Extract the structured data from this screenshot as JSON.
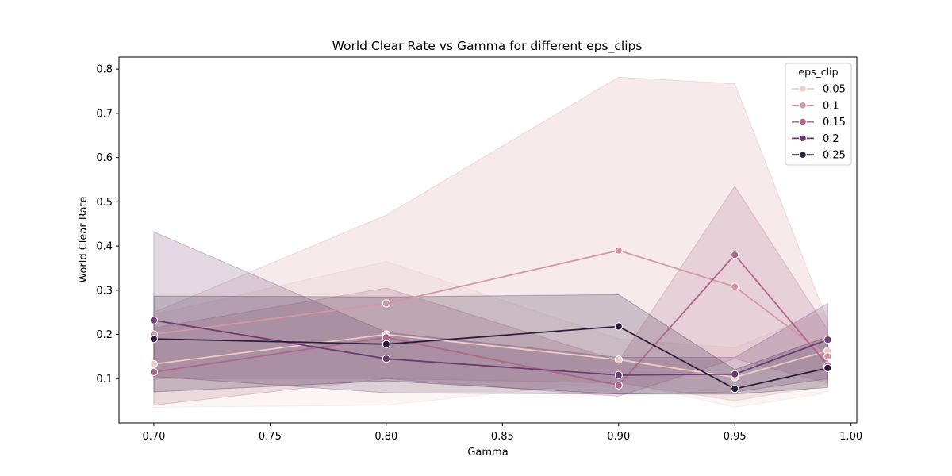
{
  "chart_data": {
    "type": "line",
    "title": "World Clear Rate vs Gamma for different eps_clips",
    "xlabel": "Gamma",
    "ylabel": "World Clear Rate",
    "xlim": [
      0.685,
      1.0025
    ],
    "ylim": [
      0.0,
      0.8272
    ],
    "xticks": [
      0.7,
      0.75,
      0.8,
      0.85,
      0.9,
      0.95,
      1.0
    ],
    "xtick_labels": [
      "0.70",
      "0.75",
      "0.80",
      "0.85",
      "0.90",
      "0.95",
      "1.00"
    ],
    "yticks": [
      0.1,
      0.2,
      0.3,
      0.4,
      0.5,
      0.6,
      0.7,
      0.8
    ],
    "ytick_labels": [
      "0.1",
      "0.2",
      "0.3",
      "0.4",
      "0.5",
      "0.6",
      "0.7",
      "0.8"
    ],
    "grid": false,
    "legend": {
      "title": "eps_clip",
      "position": "top-right"
    },
    "x": [
      0.7,
      0.8,
      0.9,
      0.95,
      0.99
    ],
    "series": [
      {
        "name": "0.05",
        "color": "#ebccc6",
        "values": [
          0.133,
          0.2,
          0.143,
          0.103,
          0.163
        ],
        "ci_low": [
          0.035,
          0.04,
          0.095,
          0.035,
          0.068
        ],
        "ci_high": [
          0.245,
          0.365,
          0.19,
          0.17,
          0.255
        ]
      },
      {
        "name": "0.1",
        "color": "#d398a6",
        "values": [
          0.2,
          0.27,
          0.39,
          0.308,
          0.15
        ],
        "ci_low": [
          0.1,
          0.1,
          0.09,
          0.05,
          0.085
        ],
        "ci_high": [
          0.25,
          0.47,
          0.782,
          0.767,
          0.23
        ]
      },
      {
        "name": "0.15",
        "color": "#ad6788",
        "values": [
          0.115,
          0.193,
          0.085,
          0.38,
          0.13
        ],
        "ci_low": [
          0.04,
          0.1,
          0.06,
          0.145,
          0.09
        ],
        "ci_high": [
          0.215,
          0.305,
          0.14,
          0.535,
          0.21
        ]
      },
      {
        "name": "0.2",
        "color": "#6b3c6f",
        "values": [
          0.232,
          0.145,
          0.108,
          0.11,
          0.188
        ],
        "ci_low": [
          0.105,
          0.068,
          0.065,
          0.07,
          0.1
        ],
        "ci_high": [
          0.432,
          0.205,
          0.148,
          0.148,
          0.27
        ]
      },
      {
        "name": "0.25",
        "color": "#2c1e3e",
        "values": [
          0.19,
          0.178,
          0.218,
          0.077,
          0.124
        ],
        "ci_low": [
          0.07,
          0.095,
          0.065,
          0.065,
          0.08
        ],
        "ci_high": [
          0.287,
          0.285,
          0.29,
          0.12,
          0.195
        ]
      }
    ]
  }
}
